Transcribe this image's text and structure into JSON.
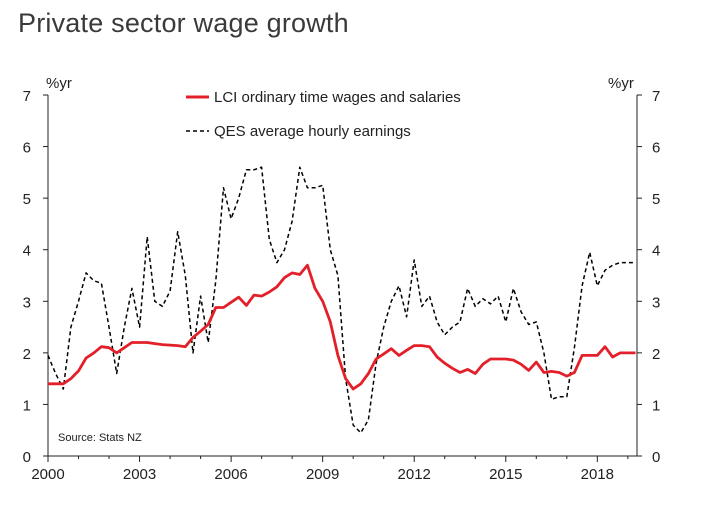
{
  "chart_data": {
    "type": "line",
    "title": "Private sector wage growth",
    "y_unit_left": "%yr",
    "y_unit_right": "%yr",
    "ylim": [
      0,
      7
    ],
    "yticks": [
      0,
      1,
      2,
      3,
      4,
      5,
      6,
      7
    ],
    "xlim": [
      2000,
      2019.3
    ],
    "xticks": [
      2000,
      2003,
      2006,
      2009,
      2012,
      2015,
      2018
    ],
    "source": "Source: Stats NZ",
    "legend_position": "top-center",
    "series": [
      {
        "name": "LCI ordinary time wages and salaries",
        "color": "#e3202a",
        "style": "solid",
        "x": [
          2000.0,
          2000.25,
          2000.5,
          2000.75,
          2001.0,
          2001.25,
          2001.5,
          2001.75,
          2002.0,
          2002.25,
          2002.5,
          2002.75,
          2003.0,
          2003.25,
          2003.5,
          2003.75,
          2004.0,
          2004.25,
          2004.5,
          2004.75,
          2005.0,
          2005.25,
          2005.5,
          2005.75,
          2006.0,
          2006.25,
          2006.5,
          2006.75,
          2007.0,
          2007.25,
          2007.5,
          2007.75,
          2008.0,
          2008.25,
          2008.5,
          2008.75,
          2009.0,
          2009.25,
          2009.5,
          2009.75,
          2010.0,
          2010.25,
          2010.5,
          2010.75,
          2011.0,
          2011.25,
          2011.5,
          2011.75,
          2012.0,
          2012.25,
          2012.5,
          2012.75,
          2013.0,
          2013.25,
          2013.5,
          2013.75,
          2014.0,
          2014.25,
          2014.5,
          2014.75,
          2015.0,
          2015.25,
          2015.5,
          2015.75,
          2016.0,
          2016.25,
          2016.5,
          2016.75,
          2017.0,
          2017.25,
          2017.5,
          2017.75,
          2018.0,
          2018.25,
          2018.5,
          2018.75,
          2019.0,
          2019.25
        ],
        "values": [
          1.4,
          1.4,
          1.4,
          1.5,
          1.65,
          1.9,
          2.0,
          2.12,
          2.1,
          2.0,
          2.1,
          2.2,
          2.2,
          2.2,
          2.18,
          2.16,
          2.15,
          2.14,
          2.12,
          2.3,
          2.42,
          2.55,
          2.88,
          2.88,
          2.98,
          3.08,
          2.92,
          3.12,
          3.1,
          3.18,
          3.28,
          3.46,
          3.55,
          3.52,
          3.7,
          3.25,
          3.0,
          2.6,
          1.95,
          1.5,
          1.3,
          1.4,
          1.6,
          1.88,
          1.98,
          2.08,
          1.95,
          2.05,
          2.14,
          2.14,
          2.12,
          1.92,
          1.8,
          1.7,
          1.62,
          1.68,
          1.6,
          1.78,
          1.88,
          1.88,
          1.88,
          1.86,
          1.78,
          1.66,
          1.82,
          1.62,
          1.64,
          1.62,
          1.55,
          1.62,
          1.95,
          1.95,
          1.95,
          2.12,
          1.92,
          2.0,
          2.0,
          2.0
        ]
      },
      {
        "name": "QES average hourly earnings",
        "color": "#000000",
        "style": "dashed",
        "x": [
          2000.0,
          2000.25,
          2000.5,
          2000.75,
          2001.0,
          2001.25,
          2001.5,
          2001.75,
          2002.0,
          2002.25,
          2002.5,
          2002.75,
          2003.0,
          2003.25,
          2003.5,
          2003.75,
          2004.0,
          2004.25,
          2004.5,
          2004.75,
          2005.0,
          2005.25,
          2005.5,
          2005.75,
          2006.0,
          2006.25,
          2006.5,
          2006.75,
          2007.0,
          2007.25,
          2007.5,
          2007.75,
          2008.0,
          2008.25,
          2008.5,
          2008.75,
          2009.0,
          2009.25,
          2009.5,
          2009.75,
          2010.0,
          2010.25,
          2010.5,
          2010.75,
          2011.0,
          2011.25,
          2011.5,
          2011.75,
          2012.0,
          2012.25,
          2012.5,
          2012.75,
          2013.0,
          2013.25,
          2013.5,
          2013.75,
          2014.0,
          2014.25,
          2014.5,
          2014.75,
          2015.0,
          2015.25,
          2015.5,
          2015.75,
          2016.0,
          2016.25,
          2016.5,
          2016.75,
          2017.0,
          2017.25,
          2017.5,
          2017.75,
          2018.0,
          2018.25,
          2018.5,
          2018.75,
          2019.0,
          2019.25
        ],
        "values": [
          1.95,
          1.6,
          1.3,
          2.5,
          3.0,
          3.55,
          3.4,
          3.35,
          2.5,
          1.6,
          2.5,
          3.25,
          2.5,
          4.25,
          3.0,
          2.9,
          3.2,
          4.35,
          3.5,
          2.0,
          3.1,
          2.2,
          3.4,
          5.2,
          4.6,
          5.0,
          5.55,
          5.55,
          5.6,
          4.2,
          3.75,
          4.0,
          4.55,
          5.6,
          5.2,
          5.2,
          5.25,
          4.0,
          3.5,
          1.5,
          0.6,
          0.45,
          0.7,
          1.8,
          2.5,
          3.0,
          3.3,
          2.7,
          3.8,
          2.9,
          3.1,
          2.6,
          2.35,
          2.5,
          2.6,
          3.25,
          2.9,
          3.05,
          2.95,
          3.1,
          2.6,
          3.25,
          2.8,
          2.55,
          2.6,
          2.0,
          1.1,
          1.15,
          1.15,
          2.1,
          3.3,
          3.95,
          3.3,
          3.6,
          3.7,
          3.75,
          3.75,
          3.75
        ]
      }
    ]
  }
}
